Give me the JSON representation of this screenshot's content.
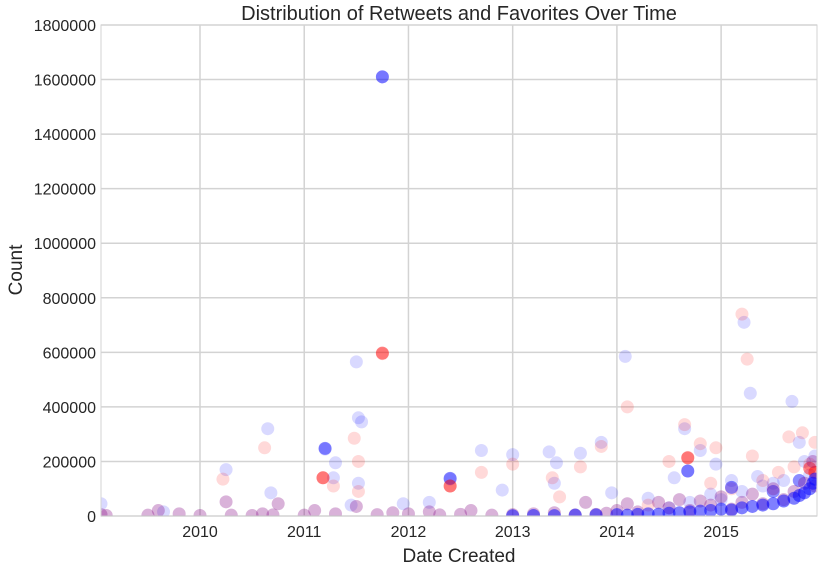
{
  "chart_data": {
    "type": "scatter",
    "title": "Distribution of Retweets and Favorites Over Time",
    "xlabel": "Date Created",
    "ylabel": "Count",
    "xlim": [
      2009.05,
      2015.92
    ],
    "ylim": [
      0,
      1800000
    ],
    "xticks": [
      2010,
      2011,
      2012,
      2013,
      2014,
      2015
    ],
    "yticks": [
      0,
      200000,
      400000,
      600000,
      800000,
      1000000,
      1200000,
      1400000,
      1600000,
      1800000
    ],
    "grid": true,
    "legend": "none",
    "colors": {
      "series_a": "#0000ff",
      "series_b": "#ff0000",
      "grid": "#d3d3d3",
      "background": "#ffffff"
    },
    "series": [
      {
        "color": "#0000ff",
        "opacity": 0.15,
        "points": [
          [
            2009.05,
            45000
          ],
          [
            2009.65,
            15000
          ],
          [
            2010.25,
            170000
          ],
          [
            2010.65,
            320000
          ],
          [
            2010.68,
            85000
          ],
          [
            2011.2,
            245000
          ],
          [
            2011.3,
            195000
          ],
          [
            2011.28,
            140000
          ],
          [
            2011.5,
            565000
          ],
          [
            2011.52,
            360000
          ],
          [
            2011.55,
            345000
          ],
          [
            2011.52,
            120000
          ],
          [
            2011.45,
            40000
          ],
          [
            2011.75,
            1610000
          ],
          [
            2011.95,
            45000
          ],
          [
            2012.2,
            50000
          ],
          [
            2012.4,
            135000
          ],
          [
            2012.7,
            240000
          ],
          [
            2012.9,
            95000
          ],
          [
            2013.0,
            225000
          ],
          [
            2013.35,
            235000
          ],
          [
            2013.42,
            195000
          ],
          [
            2013.4,
            120000
          ],
          [
            2013.65,
            230000
          ],
          [
            2013.85,
            270000
          ],
          [
            2013.95,
            85000
          ],
          [
            2014.08,
            585000
          ],
          [
            2014.3,
            65000
          ],
          [
            2014.55,
            140000
          ],
          [
            2014.65,
            320000
          ],
          [
            2014.68,
            165000
          ],
          [
            2014.8,
            240000
          ],
          [
            2014.95,
            190000
          ],
          [
            2015.1,
            130000
          ],
          [
            2015.22,
            710000
          ],
          [
            2015.28,
            450000
          ],
          [
            2015.35,
            145000
          ],
          [
            2015.5,
            120000
          ],
          [
            2015.68,
            420000
          ],
          [
            2015.75,
            270000
          ],
          [
            2015.8,
            200000
          ],
          [
            2015.9,
            220000
          ],
          [
            2014.5,
            30000
          ],
          [
            2014.7,
            50000
          ],
          [
            2014.9,
            80000
          ],
          [
            2015.0,
            60000
          ],
          [
            2015.2,
            90000
          ],
          [
            2015.4,
            110000
          ],
          [
            2015.6,
            130000
          ],
          [
            2015.85,
            150000
          ]
        ]
      },
      {
        "color": "#ff0000",
        "opacity": 0.15,
        "points": [
          [
            2010.22,
            135000
          ],
          [
            2010.62,
            250000
          ],
          [
            2011.18,
            140000
          ],
          [
            2011.28,
            110000
          ],
          [
            2011.48,
            285000
          ],
          [
            2011.52,
            200000
          ],
          [
            2011.52,
            90000
          ],
          [
            2011.75,
            595000
          ],
          [
            2012.4,
            110000
          ],
          [
            2012.7,
            160000
          ],
          [
            2013.0,
            190000
          ],
          [
            2013.38,
            140000
          ],
          [
            2013.45,
            70000
          ],
          [
            2013.65,
            180000
          ],
          [
            2013.85,
            255000
          ],
          [
            2014.1,
            400000
          ],
          [
            2014.5,
            200000
          ],
          [
            2014.65,
            335000
          ],
          [
            2014.68,
            215000
          ],
          [
            2014.8,
            265000
          ],
          [
            2014.95,
            250000
          ],
          [
            2015.2,
            740000
          ],
          [
            2015.25,
            575000
          ],
          [
            2015.3,
            220000
          ],
          [
            2015.55,
            160000
          ],
          [
            2015.65,
            290000
          ],
          [
            2015.78,
            305000
          ],
          [
            2015.9,
            270000
          ],
          [
            2015.7,
            180000
          ],
          [
            2015.85,
            190000
          ],
          [
            2014.9,
            120000
          ],
          [
            2015.1,
            100000
          ],
          [
            2015.4,
            130000
          ],
          [
            2014.3,
            40000
          ]
        ]
      },
      {
        "color": "#0000ff",
        "opacity": 0.45,
        "points": [
          [
            2011.2,
            248000
          ],
          [
            2011.75,
            1610000
          ],
          [
            2012.4,
            138000
          ],
          [
            2014.68,
            165000
          ],
          [
            2015.1,
            105000
          ],
          [
            2015.5,
            90000
          ],
          [
            2015.75,
            130000
          ]
        ]
      },
      {
        "color": "#ff0000",
        "opacity": 0.45,
        "points": [
          [
            2011.18,
            140000
          ],
          [
            2011.75,
            597000
          ],
          [
            2012.4,
            110000
          ],
          [
            2014.68,
            213000
          ],
          [
            2015.85,
            175000
          ],
          [
            2015.9,
            160000
          ]
        ]
      },
      {
        "color": "#800080",
        "opacity": 0.3,
        "points": [
          [
            2009.05,
            5000
          ],
          [
            2009.1,
            2000
          ],
          [
            2009.5,
            3000
          ],
          [
            2009.6,
            20000
          ],
          [
            2009.8,
            8000
          ],
          [
            2010.0,
            2000
          ],
          [
            2010.25,
            52000
          ],
          [
            2010.3,
            3000
          ],
          [
            2010.5,
            2000
          ],
          [
            2010.6,
            8000
          ],
          [
            2010.7,
            4000
          ],
          [
            2010.75,
            45000
          ],
          [
            2011.0,
            3000
          ],
          [
            2011.1,
            20000
          ],
          [
            2011.3,
            8000
          ],
          [
            2011.5,
            35000
          ],
          [
            2011.7,
            5000
          ],
          [
            2011.85,
            12000
          ],
          [
            2012.0,
            8000
          ],
          [
            2012.2,
            15000
          ],
          [
            2012.3,
            4000
          ],
          [
            2012.5,
            6000
          ],
          [
            2012.6,
            20000
          ],
          [
            2012.8,
            3000
          ],
          [
            2013.0,
            5000
          ],
          [
            2013.2,
            8000
          ],
          [
            2013.4,
            12000
          ],
          [
            2013.6,
            4000
          ],
          [
            2013.7,
            50000
          ],
          [
            2013.8,
            6000
          ],
          [
            2013.9,
            10000
          ],
          [
            2014.0,
            20000
          ],
          [
            2014.1,
            45000
          ],
          [
            2014.2,
            15000
          ],
          [
            2014.4,
            50000
          ],
          [
            2014.5,
            30000
          ],
          [
            2014.6,
            60000
          ],
          [
            2014.7,
            20000
          ],
          [
            2014.8,
            55000
          ],
          [
            2014.9,
            40000
          ],
          [
            2015.0,
            70000
          ],
          [
            2015.1,
            25000
          ],
          [
            2015.2,
            50000
          ],
          [
            2015.3,
            80000
          ],
          [
            2015.4,
            45000
          ],
          [
            2015.5,
            100000
          ],
          [
            2015.6,
            60000
          ],
          [
            2015.7,
            90000
          ],
          [
            2015.8,
            120000
          ],
          [
            2015.9,
            110000
          ],
          [
            2015.88,
            200000
          ]
        ]
      },
      {
        "color": "#0000ff",
        "opacity": 0.5,
        "points": [
          [
            2013.0,
            1000
          ],
          [
            2013.2,
            2000
          ],
          [
            2013.4,
            1500
          ],
          [
            2013.6,
            3000
          ],
          [
            2013.8,
            4000
          ],
          [
            2014.0,
            5000
          ],
          [
            2014.1,
            3000
          ],
          [
            2014.2,
            6000
          ],
          [
            2014.3,
            8000
          ],
          [
            2014.4,
            7000
          ],
          [
            2014.5,
            10000
          ],
          [
            2014.6,
            12000
          ],
          [
            2014.7,
            15000
          ],
          [
            2014.8,
            18000
          ],
          [
            2014.9,
            20000
          ],
          [
            2015.0,
            25000
          ],
          [
            2015.1,
            22000
          ],
          [
            2015.2,
            30000
          ],
          [
            2015.3,
            35000
          ],
          [
            2015.4,
            40000
          ],
          [
            2015.5,
            45000
          ],
          [
            2015.6,
            55000
          ],
          [
            2015.7,
            65000
          ],
          [
            2015.75,
            75000
          ],
          [
            2015.8,
            85000
          ],
          [
            2015.85,
            100000
          ],
          [
            2015.88,
            120000
          ],
          [
            2015.9,
            135000
          ]
        ]
      }
    ]
  }
}
